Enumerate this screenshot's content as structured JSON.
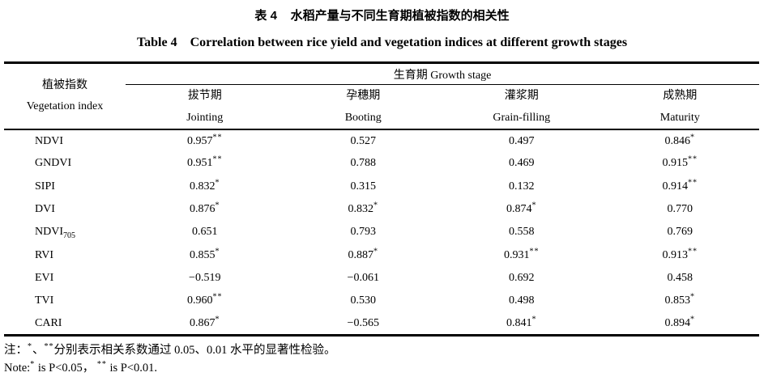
{
  "page": {
    "title_zh": "表 4    水稻产量与不同生育期植被指数的相关性",
    "title_en": "Table 4    Correlation between rice yield and vegetation indices at different growth stages"
  },
  "table": {
    "col1_header_zh": "植被指数",
    "col1_header_en": "Vegetation index",
    "group_header": "生育期 Growth stage",
    "columns": [
      {
        "zh": "拔节期",
        "en": "Jointing"
      },
      {
        "zh": "孕穗期",
        "en": "Booting"
      },
      {
        "zh": "灌浆期",
        "en": "Grain-filling"
      },
      {
        "zh": "成熟期",
        "en": "Maturity"
      }
    ]
  },
  "notes": {
    "zh": {
      "prefix": "注：",
      "star1": "*",
      "sep": "、",
      "star2": "**",
      "rest": "分别表示相关系数通过 0.05、0.01 水平的显著性检验。"
    },
    "en": {
      "prefix": "Note:",
      "star1": "*",
      "mid": " is P<0.05， ",
      "star2": "**",
      "rest": " is P<0.01."
    }
  },
  "chart_data": {
    "type": "table",
    "title_zh": "表 4 水稻产量与不同生育期植被指数的相关性",
    "title_en": "Table 4 Correlation between rice yield and vegetation indices at different growth stages",
    "columns": [
      "Vegetation index",
      "Jointing",
      "Booting",
      "Grain-filling",
      "Maturity"
    ],
    "rows": [
      [
        "NDVI",
        "0.957**",
        "0.527",
        "0.497",
        "0.846*"
      ],
      [
        "GNDVI",
        "0.951**",
        "0.788",
        "0.469",
        "0.915**"
      ],
      [
        "SIPI",
        "0.832*",
        "0.315",
        "0.132",
        "0.914**"
      ],
      [
        "DVI",
        "0.876*",
        "0.832*",
        "0.874*",
        "0.770"
      ],
      [
        "NDVI705",
        "0.651",
        "0.793",
        "0.558",
        "0.769"
      ],
      [
        "RVI",
        "0.855*",
        "0.887*",
        "0.931**",
        "0.913**"
      ],
      [
        "EVI",
        "−0.519",
        "−0.061",
        "0.692",
        "0.458"
      ],
      [
        "TVI",
        "0.960**",
        "0.530",
        "0.498",
        "0.853*"
      ],
      [
        "CARI",
        "0.867*",
        "−0.565",
        "0.841*",
        "0.894*"
      ]
    ],
    "significance_legend": {
      "*": "P<0.05",
      "**": "P<0.01"
    }
  }
}
